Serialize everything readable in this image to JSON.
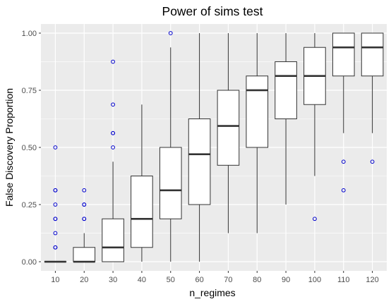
{
  "chart_data": {
    "type": "box",
    "title": "Power of sims test",
    "xlabel": "n_regimes",
    "ylabel": "False Discovery Proportion",
    "categories": [
      "10",
      "20",
      "30",
      "40",
      "50",
      "60",
      "70",
      "80",
      "90",
      "100",
      "110",
      "120"
    ],
    "yticks": [
      "0.00",
      "0.25",
      "0.50",
      "0.75",
      "1.00"
    ],
    "ylim": [
      -0.04,
      1.04
    ],
    "grid": true,
    "background": "#ebebeb",
    "grid_color": "#ffffff",
    "box_fill": "#ffffff",
    "box_stroke": "#333333",
    "outlier_color": "#0000cd",
    "boxes": [
      {
        "x": "10",
        "whisker_low": 0.0,
        "q1": 0.0,
        "median": 0.0,
        "q3": 0.0,
        "whisker_high": 0.0,
        "outliers": [
          0.0625,
          0.0625,
          0.125,
          0.1875,
          0.1875,
          0.25,
          0.3125,
          0.3125,
          0.5
        ]
      },
      {
        "x": "20",
        "whisker_low": 0.0,
        "q1": 0.0,
        "median": 0.0,
        "q3": 0.0625,
        "whisker_high": 0.125,
        "outliers": [
          0.1875,
          0.1875,
          0.25,
          0.25,
          0.3125
        ]
      },
      {
        "x": "30",
        "whisker_low": 0.0,
        "q1": 0.0,
        "median": 0.0625,
        "q3": 0.1875,
        "whisker_high": 0.4375,
        "outliers": [
          0.5,
          0.5625,
          0.5625,
          0.6875,
          0.875
        ]
      },
      {
        "x": "40",
        "whisker_low": 0.0,
        "q1": 0.0625,
        "median": 0.1875,
        "q3": 0.375,
        "whisker_high": 0.6875,
        "outliers": []
      },
      {
        "x": "50",
        "whisker_low": 0.0,
        "q1": 0.1875,
        "median": 0.3125,
        "q3": 0.5,
        "whisker_high": 0.9375,
        "outliers": [
          1.0
        ]
      },
      {
        "x": "60",
        "whisker_low": 0.0,
        "q1": 0.25,
        "median": 0.47,
        "q3": 0.625,
        "whisker_high": 1.0,
        "outliers": []
      },
      {
        "x": "70",
        "whisker_low": 0.125,
        "q1": 0.4219,
        "median": 0.5938,
        "q3": 0.75,
        "whisker_high": 1.0,
        "outliers": []
      },
      {
        "x": "80",
        "whisker_low": 0.125,
        "q1": 0.5,
        "median": 0.75,
        "q3": 0.8125,
        "whisker_high": 1.0,
        "outliers": []
      },
      {
        "x": "90",
        "whisker_low": 0.25,
        "q1": 0.625,
        "median": 0.8125,
        "q3": 0.875,
        "whisker_high": 1.0,
        "outliers": []
      },
      {
        "x": "100",
        "whisker_low": 0.375,
        "q1": 0.6875,
        "median": 0.8125,
        "q3": 0.9375,
        "whisker_high": 1.0,
        "outliers": [
          0.1875
        ]
      },
      {
        "x": "110",
        "whisker_low": 0.5625,
        "q1": 0.8125,
        "median": 0.9375,
        "q3": 1.0,
        "whisker_high": 1.0,
        "outliers": [
          0.3125,
          0.4375
        ]
      },
      {
        "x": "120",
        "whisker_low": 0.5625,
        "q1": 0.8125,
        "median": 0.9375,
        "q3": 1.0,
        "whisker_high": 1.0,
        "outliers": [
          0.4375
        ]
      }
    ]
  }
}
